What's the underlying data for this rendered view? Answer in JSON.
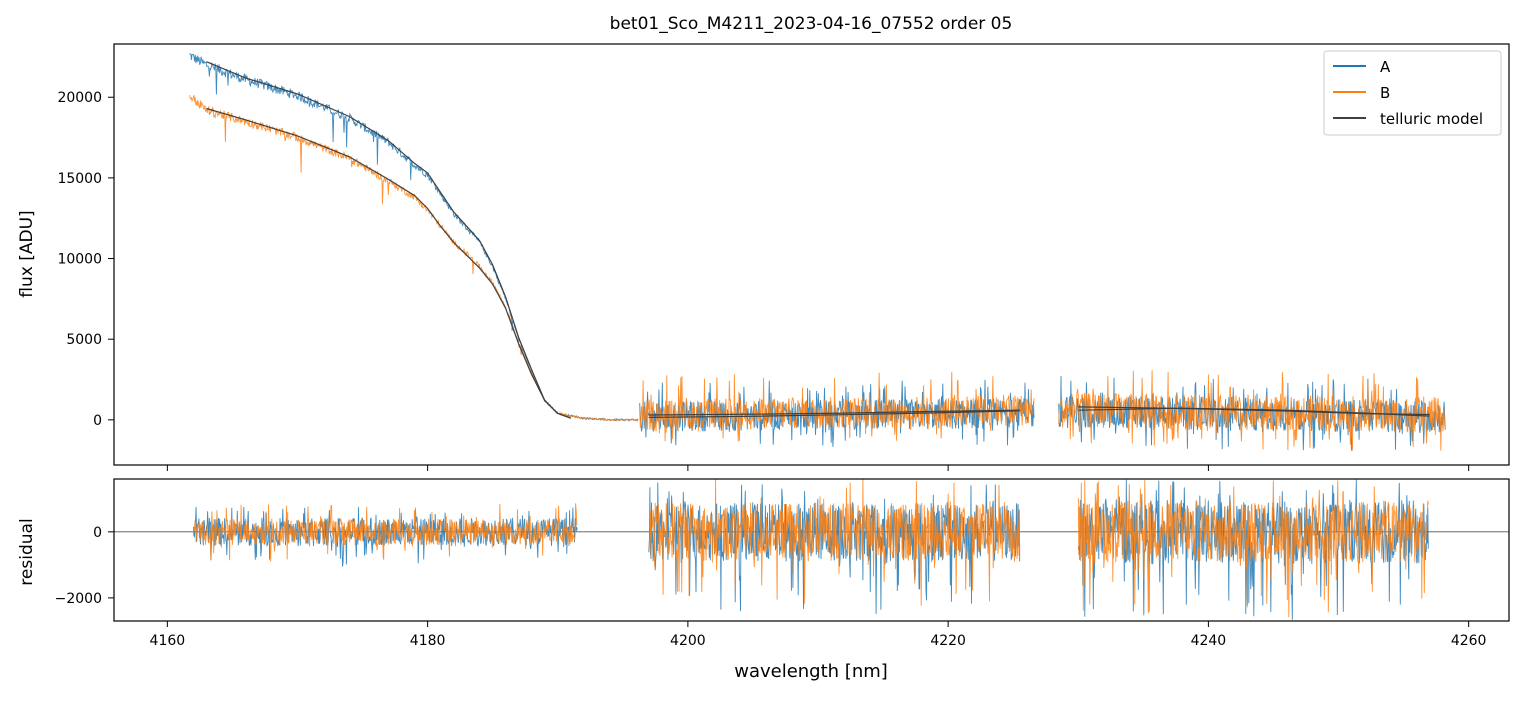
{
  "chart_data": [
    {
      "type": "line",
      "title": "bet01_Sco_M4211_2023-04-16_07552  order 05",
      "xlabel": "wavelength [nm]",
      "ylabel": "flux [ADU]",
      "xlim": [
        4155.9,
        4263.1
      ],
      "ylim": [
        -2800,
        23300
      ],
      "yticks": [
        0,
        5000,
        10000,
        15000,
        20000
      ],
      "ytick_labels": [
        "0",
        "5000",
        "10000",
        "15000",
        "20000"
      ],
      "xticks": [
        4160,
        4180,
        4200,
        4220,
        4240,
        4260
      ],
      "grid": false,
      "legend_position": "top-right",
      "legend": [
        "A",
        "B",
        "telluric model"
      ],
      "series": [
        {
          "name": "A",
          "color": "#1f77b4",
          "segments": [
            {
              "kind": "band",
              "x": [
                4161.7,
                4196.2
              ],
              "points": [
                [
                  4161.7,
                  22600
                ],
                [
                  4163,
                  22000
                ],
                [
                  4166,
                  21100
                ],
                [
                  4170,
                  20100
                ],
                [
                  4174,
                  18700
                ],
                [
                  4177,
                  17200
                ],
                [
                  4179,
                  15800
                ],
                [
                  4180,
                  15200
                ],
                [
                  4181,
                  14000
                ],
                [
                  4182,
                  12800
                ],
                [
                  4183,
                  11900
                ],
                [
                  4184,
                  11000
                ],
                [
                  4185,
                  9500
                ],
                [
                  4186,
                  7500
                ],
                [
                  4187,
                  5000
                ],
                [
                  4188,
                  3000
                ],
                [
                  4189,
                  1200
                ],
                [
                  4190,
                  400
                ],
                [
                  4192,
                  100
                ],
                [
                  4194,
                  0
                ],
                [
                  4195,
                  0
                ],
                [
                  4196.2,
                  0
                ]
              ]
            },
            {
              "kind": "noise",
              "x": [
                4196.3,
                4226.6
              ],
              "base_start": 200,
              "base_end": 400,
              "noise_low": -2000,
              "noise_high": 2200
            },
            {
              "kind": "noise",
              "x": [
                4228.5,
                4258.2
              ],
              "base_start": 500,
              "base_end": 200,
              "noise_low": -2200,
              "noise_high": 2400
            }
          ]
        },
        {
          "name": "B",
          "color": "#ff7f0e",
          "segments": [
            {
              "kind": "band",
              "x": [
                4161.7,
                4196.2
              ],
              "points": [
                [
                  4161.7,
                  20100
                ],
                [
                  4163,
                  19200
                ],
                [
                  4166,
                  18500
                ],
                [
                  4170,
                  17500
                ],
                [
                  4174,
                  16200
                ],
                [
                  4177,
                  14800
                ],
                [
                  4179,
                  13800
                ],
                [
                  4180,
                  13000
                ],
                [
                  4181,
                  12000
                ],
                [
                  4182,
                  11000
                ],
                [
                  4183,
                  10300
                ],
                [
                  4184,
                  9500
                ],
                [
                  4185,
                  8500
                ],
                [
                  4186,
                  7000
                ],
                [
                  4187,
                  4800
                ],
                [
                  4188,
                  2900
                ],
                [
                  4189,
                  1200
                ],
                [
                  4190,
                  400
                ],
                [
                  4192,
                  100
                ],
                [
                  4194,
                  0
                ],
                [
                  4195,
                  0
                ],
                [
                  4196.2,
                  0
                ]
              ]
            },
            {
              "kind": "noise",
              "x": [
                4196.3,
                4226.6
              ],
              "base_start": 300,
              "base_end": 600,
              "noise_low": -1800,
              "noise_high": 2500
            },
            {
              "kind": "noise",
              "x": [
                4228.5,
                4258.2
              ],
              "base_start": 600,
              "base_end": 300,
              "noise_low": -2300,
              "noise_high": 2600
            }
          ]
        },
        {
          "name": "telluric model",
          "color": "#404040",
          "segments": [
            {
              "kind": "line",
              "points": [
                [
                  4163,
                  19300
                ],
                [
                  4166,
                  18600
                ],
                [
                  4170,
                  17600
                ],
                [
                  4174,
                  16300
                ],
                [
                  4177,
                  14900
                ],
                [
                  4179,
                  13900
                ],
                [
                  4180,
                  13100
                ],
                [
                  4181,
                  12000
                ],
                [
                  4182,
                  11000
                ],
                [
                  4183,
                  10200
                ],
                [
                  4184,
                  9400
                ],
                [
                  4185,
                  8400
                ],
                [
                  4186,
                  6900
                ],
                [
                  4187,
                  4700
                ],
                [
                  4188,
                  2800
                ],
                [
                  4189,
                  1200
                ],
                [
                  4190,
                  400
                ],
                [
                  4191,
                  100
                ]
              ]
            },
            {
              "kind": "line",
              "points": [
                [
                  4163,
                  22200
                ],
                [
                  4166,
                  21200
                ],
                [
                  4170,
                  20200
                ],
                [
                  4174,
                  18800
                ],
                [
                  4177,
                  17300
                ],
                [
                  4179,
                  15900
                ],
                [
                  4180,
                  15300
                ],
                [
                  4181,
                  14100
                ],
                [
                  4182,
                  12900
                ],
                [
                  4183,
                  12000
                ],
                [
                  4184,
                  11100
                ],
                [
                  4185,
                  9600
                ],
                [
                  4186,
                  7600
                ],
                [
                  4187,
                  5100
                ],
                [
                  4188,
                  3100
                ],
                [
                  4189,
                  1200
                ],
                [
                  4190,
                  400
                ],
                [
                  4191,
                  100
                ]
              ]
            },
            {
              "kind": "line",
              "points": [
                [
                  4197,
                  300
                ],
                [
                  4205,
                  350
                ],
                [
                  4212,
                  420
                ],
                [
                  4219,
                  520
                ],
                [
                  4225.5,
                  600
                ]
              ]
            },
            {
              "kind": "line",
              "points": [
                [
                  4197,
                  150
                ],
                [
                  4205,
                  220
                ],
                [
                  4212,
                  320
                ],
                [
                  4219,
                  430
                ],
                [
                  4225.5,
                  560
                ]
              ]
            },
            {
              "kind": "line",
              "points": [
                [
                  4230,
                  600
                ],
                [
                  4238,
                  720
                ],
                [
                  4246,
                  600
                ],
                [
                  4252,
                  420
                ],
                [
                  4257,
                  230
                ]
              ]
            },
            {
              "kind": "line",
              "points": [
                [
                  4230,
                  800
                ],
                [
                  4238,
                  700
                ],
                [
                  4246,
                  550
                ],
                [
                  4252,
                  380
                ],
                [
                  4257,
                  330
                ]
              ]
            }
          ]
        }
      ]
    },
    {
      "type": "line",
      "title": "",
      "xlabel": "wavelength [nm]",
      "ylabel": "residual",
      "xlim": [
        4155.9,
        4263.1
      ],
      "ylim": [
        -2700,
        1600
      ],
      "yticks": [
        0,
        -2000
      ],
      "ytick_labels": [
        "0",
        "−2000"
      ],
      "xticks": [
        4160,
        4180,
        4200,
        4220,
        4240,
        4260
      ],
      "xtick_labels": [
        "4160",
        "4180",
        "4200",
        "4220",
        "4240",
        "4260"
      ],
      "grid": false,
      "zero_line": true,
      "series": [
        {
          "name": "A",
          "color": "#1f77b4",
          "segments": [
            {
              "kind": "noise",
              "x": [
                4162,
                4191.5
              ],
              "base_start": 0,
              "base_end": 0,
              "noise_low": -1100,
              "noise_high": 800
            },
            {
              "kind": "noise",
              "x": [
                4197,
                4225.5
              ],
              "base_start": 0,
              "base_end": 0,
              "noise_low": -2500,
              "noise_high": 1500
            },
            {
              "kind": "noise",
              "x": [
                4230,
                4256.9
              ],
              "base_start": 0,
              "base_end": 0,
              "noise_low": -2700,
              "noise_high": 1600
            }
          ]
        },
        {
          "name": "B",
          "color": "#ff7f0e",
          "segments": [
            {
              "kind": "noise",
              "x": [
                4162,
                4191.5
              ],
              "base_start": 0,
              "base_end": 0,
              "noise_low": -900,
              "noise_high": 900
            },
            {
              "kind": "noise",
              "x": [
                4197,
                4225.5
              ],
              "base_start": 0,
              "base_end": 0,
              "noise_low": -2300,
              "noise_high": 1600
            },
            {
              "kind": "noise",
              "x": [
                4230,
                4256.9
              ],
              "base_start": 0,
              "base_end": 0,
              "noise_low": -2600,
              "noise_high": 1600
            }
          ]
        }
      ]
    }
  ]
}
